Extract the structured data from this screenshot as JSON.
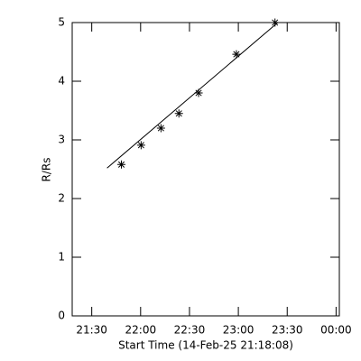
{
  "chart_data": {
    "type": "scatter",
    "x_label": "Start Time (14-Feb-25 21:18:08)",
    "y_label": "R/Rs",
    "xlim": [
      1278,
      1442
    ],
    "ylim": [
      0,
      5
    ],
    "xticks": [
      {
        "value": 1290,
        "label": "21:30"
      },
      {
        "value": 1320,
        "label": "22:00"
      },
      {
        "value": 1350,
        "label": "22:30"
      },
      {
        "value": 1380,
        "label": "23:00"
      },
      {
        "value": 1410,
        "label": "23:30"
      },
      {
        "value": 1440,
        "label": "00:00"
      }
    ],
    "yticks": [
      0,
      1,
      2,
      3,
      4,
      5
    ],
    "color": "#000000",
    "series": [
      {
        "marker": "asterisk",
        "x": [
          1308.2,
          1320.3,
          1332.5,
          1343.5,
          1355.6,
          1378.8,
          1402.5
        ],
        "values": [
          2.58,
          2.91,
          3.2,
          3.45,
          3.8,
          4.46,
          5.0
        ]
      },
      {
        "marker": "none",
        "x": [
          1299.4,
          1404.2
        ],
        "values": [
          2.52,
          5.0
        ]
      }
    ]
  }
}
